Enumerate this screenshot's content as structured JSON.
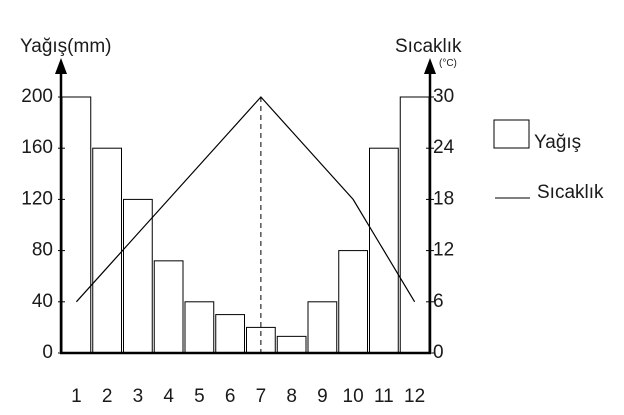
{
  "chart_data": {
    "type": "bar",
    "categories": [
      "1",
      "2",
      "3",
      "4",
      "5",
      "6",
      "7",
      "8",
      "9",
      "10",
      "11",
      "12"
    ],
    "left_axis": {
      "label": "Yağış(mm)",
      "ticks": [
        "0",
        "40",
        "80",
        "120",
        "160",
        "200"
      ],
      "ylim": [
        0,
        200
      ]
    },
    "right_axis": {
      "label": "Sıcaklık",
      "unit": "(°C)",
      "ticks": [
        "0",
        "6",
        "12",
        "18",
        "24",
        "30"
      ],
      "ylim": [
        0,
        30
      ]
    },
    "series": [
      {
        "name": "Yağış",
        "kind": "bar",
        "axis": "left",
        "values": [
          200,
          160,
          120,
          72,
          40,
          30,
          20,
          13,
          40,
          80,
          160,
          200
        ]
      },
      {
        "name": "Sıcaklık",
        "kind": "line",
        "axis": "right",
        "values": [
          6,
          10,
          14,
          18,
          22,
          26,
          30,
          26,
          22,
          18,
          12,
          6
        ]
      }
    ],
    "reference_line": {
      "x": "7",
      "style": "dashed"
    },
    "legend": {
      "placement": "right"
    },
    "grid": false
  }
}
